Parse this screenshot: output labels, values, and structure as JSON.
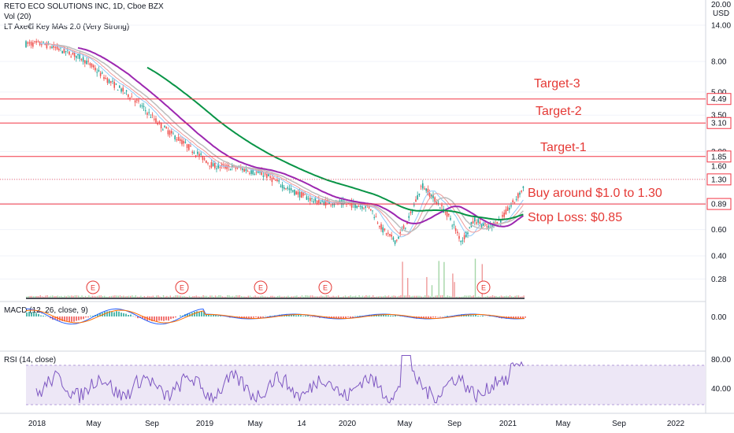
{
  "header": {
    "title": "RETO ECO SOLUTIONS INC, 1D, Cboe BZX",
    "vol": "Vol (20)",
    "indicator": "LT Axe€l Key MAs 2.0 (Very Strong)",
    "macd": "MACD (12, 26, close, 9)",
    "rsi": "RSI (14, close)"
  },
  "price_axis": {
    "currency_top": "20.00",
    "currency": "USD",
    "ticks": [
      "14.00",
      "8.00",
      "5.00",
      "3.50",
      "2.00",
      "1.60",
      "0.60",
      "0.40",
      "0.28"
    ]
  },
  "price_tags": [
    {
      "label": "4.49",
      "value": 4.49,
      "color": "#f23645"
    },
    {
      "label": "3.10",
      "value": 3.1,
      "color": "#f23645"
    },
    {
      "label": "1.85",
      "value": 1.85,
      "color": "#f23645"
    },
    {
      "label": "1.30",
      "value": 1.3,
      "color": "#f23645"
    },
    {
      "label": "0.89",
      "value": 0.89,
      "color": "#f23645"
    }
  ],
  "annotations": {
    "target3": "Target-3",
    "target2": "Target-2",
    "target1": "Target-1",
    "buy": "Buy around $1.0 to 1.30",
    "stop": "Stop Loss: $0.85"
  },
  "macd_axis": {
    "ticks": [
      "0.00"
    ]
  },
  "rsi_axis": {
    "ticks": [
      "80.00",
      "40.00"
    ]
  },
  "time_axis": [
    "2018",
    "May",
    "Sep",
    "2019",
    "May",
    "14",
    "2020",
    "May",
    "Sep",
    "2021",
    "May",
    "Sep",
    "2022"
  ],
  "earnings_marker": "E",
  "colors": {
    "up": "#26a69a",
    "down": "#ef5350",
    "line": "#f23645",
    "ma_long": "#089446",
    "ma_mid": "#9c27b0",
    "rsi": "#7e57c2",
    "rsi_band": "#ede7f6",
    "macd": "#2962ff",
    "signal": "#ff6d00"
  },
  "chart_data": {
    "type": "line",
    "title": "RETO ECO SOLUTIONS INC, 1D, Cboe BZX",
    "x": [
      "2018-01",
      "2018-02",
      "2018-04",
      "2018-06",
      "2018-08",
      "2018-10",
      "2018-12",
      "2019-02",
      "2019-04",
      "2019-06",
      "2019-08",
      "2019-10",
      "2019-12",
      "2020-02",
      "2020-03",
      "2020-04",
      "2020-05",
      "2020-06",
      "2020-07",
      "2020-08",
      "2020-09",
      "2020-10",
      "2020-11",
      "2020-12",
      "2021-01",
      "2021-02"
    ],
    "series": [
      {
        "name": "",
        "values": [
          10.5,
          9.8,
          8.5,
          6.0,
          4.5,
          3.0,
          2.2,
          1.6,
          1.55,
          1.4,
          1.1,
          0.92,
          0.9,
          0.85,
          0.6,
          0.5,
          0.7,
          1.2,
          0.95,
          0.75,
          0.5,
          0.7,
          0.62,
          0.7,
          0.92,
          1.25
        ]
      }
    ],
    "horizontal_levels": [
      4.49,
      3.1,
      1.85,
      1.3,
      0.89
    ],
    "ylim": [
      0.25,
      20.0
    ],
    "y_scale": "log",
    "rsi": {
      "ylim": [
        0,
        100
      ],
      "band": [
        30,
        70
      ],
      "ticks": [
        80,
        40
      ]
    },
    "macd": {
      "ticks": [
        0.0
      ]
    }
  }
}
